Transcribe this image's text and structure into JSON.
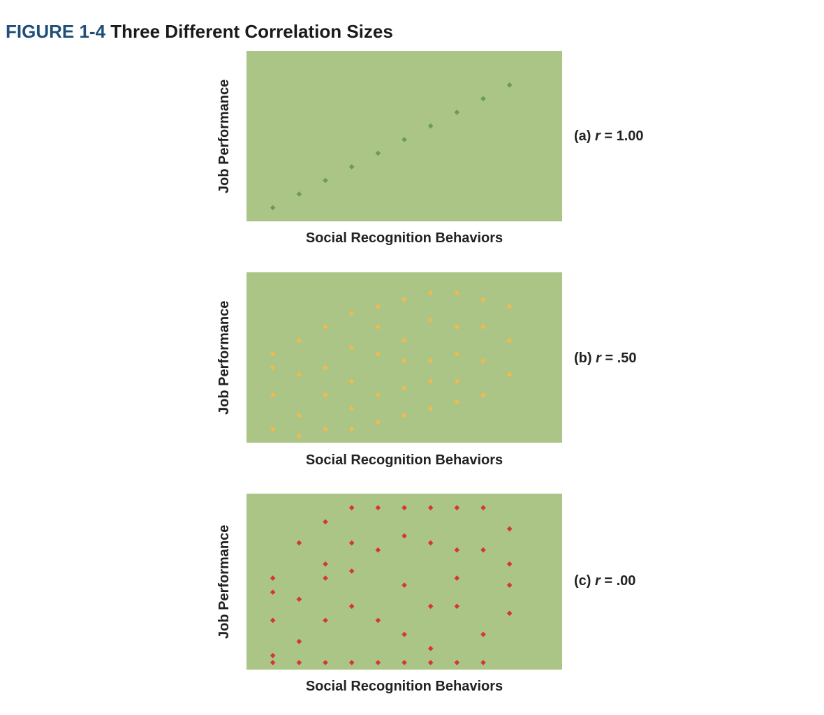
{
  "figure": {
    "number": "FIGURE 1-4",
    "title": "Three Different Correlation Sizes"
  },
  "chart_data": [
    {
      "type": "scatter",
      "panel": "(a)",
      "r_symbol": "r",
      "r_value": "= 1.00",
      "xlabel": "Social Recognition Behaviors",
      "ylabel": "Job Performance",
      "xlim": [
        0,
        12
      ],
      "ylim": [
        0,
        12.5
      ],
      "grid": false,
      "background": "#abc587",
      "point_color": "#6a9a5c",
      "points": [
        [
          1,
          1
        ],
        [
          2,
          2
        ],
        [
          3,
          3
        ],
        [
          4,
          4
        ],
        [
          5,
          5
        ],
        [
          6,
          6
        ],
        [
          7,
          7
        ],
        [
          8,
          8
        ],
        [
          9,
          9
        ],
        [
          10,
          10
        ]
      ]
    },
    {
      "type": "scatter",
      "panel": "(b)",
      "r_symbol": "r",
      "r_value": "= .50",
      "xlabel": "Social Recognition Behaviors",
      "ylabel": "Job Performance",
      "xlim": [
        0,
        12
      ],
      "ylim": [
        0,
        12.5
      ],
      "grid": false,
      "background": "#abc587",
      "point_color": "#f3b94a",
      "points": [
        [
          1,
          1
        ],
        [
          1,
          3.5
        ],
        [
          1,
          5.5
        ],
        [
          1,
          6.5
        ],
        [
          2,
          0.5
        ],
        [
          2,
          2
        ],
        [
          2,
          5
        ],
        [
          2,
          7.5
        ],
        [
          3,
          1
        ],
        [
          3,
          3.5
        ],
        [
          3,
          5.5
        ],
        [
          3,
          8.5
        ],
        [
          4,
          1
        ],
        [
          4,
          2.5
        ],
        [
          4,
          4.5
        ],
        [
          4,
          7
        ],
        [
          4,
          9.5
        ],
        [
          5,
          1.5
        ],
        [
          5,
          3.5
        ],
        [
          5,
          6.5
        ],
        [
          5,
          8.5
        ],
        [
          5,
          10
        ],
        [
          6,
          2
        ],
        [
          6,
          4
        ],
        [
          6,
          6
        ],
        [
          6,
          7.5
        ],
        [
          6,
          10.5
        ],
        [
          7,
          2.5
        ],
        [
          7,
          4.5
        ],
        [
          7,
          6
        ],
        [
          7,
          9
        ],
        [
          7,
          11
        ],
        [
          8,
          3
        ],
        [
          8,
          4.5
        ],
        [
          8,
          6.5
        ],
        [
          8,
          8.5
        ],
        [
          8,
          11
        ],
        [
          9,
          3.5
        ],
        [
          9,
          6
        ],
        [
          9,
          8.5
        ],
        [
          9,
          10.5
        ],
        [
          10,
          5
        ],
        [
          10,
          7.5
        ],
        [
          10,
          10
        ]
      ]
    },
    {
      "type": "scatter",
      "panel": "(c)",
      "r_symbol": "r",
      "r_value": "= .00",
      "xlabel": "Social Recognition Behaviors",
      "ylabel": "Job Performance",
      "xlim": [
        0,
        12
      ],
      "ylim": [
        0,
        12.5
      ],
      "grid": false,
      "background": "#abc587",
      "point_color": "#d6343c",
      "points": [
        [
          1,
          0.5
        ],
        [
          1,
          1
        ],
        [
          1,
          3.5
        ],
        [
          1,
          5.5
        ],
        [
          1,
          6.5
        ],
        [
          2,
          0.5
        ],
        [
          2,
          2
        ],
        [
          2,
          5
        ],
        [
          2,
          9
        ],
        [
          3,
          0.5
        ],
        [
          3,
          3.5
        ],
        [
          3,
          6.5
        ],
        [
          3,
          7.5
        ],
        [
          3,
          10.5
        ],
        [
          4,
          0.5
        ],
        [
          4,
          4.5
        ],
        [
          4,
          7
        ],
        [
          4,
          9
        ],
        [
          4,
          11.5
        ],
        [
          5,
          0.5
        ],
        [
          5,
          3.5
        ],
        [
          5,
          8.5
        ],
        [
          5,
          11.5
        ],
        [
          6,
          0.5
        ],
        [
          6,
          2.5
        ],
        [
          6,
          6
        ],
        [
          6,
          9.5
        ],
        [
          6,
          11.5
        ],
        [
          7,
          0.5
        ],
        [
          7,
          1.5
        ],
        [
          7,
          4.5
        ],
        [
          7,
          9
        ],
        [
          7,
          11.5
        ],
        [
          8,
          0.5
        ],
        [
          8,
          4.5
        ],
        [
          8,
          6.5
        ],
        [
          8,
          8.5
        ],
        [
          8,
          11.5
        ],
        [
          9,
          0.5
        ],
        [
          9,
          2.5
        ],
        [
          9,
          8.5
        ],
        [
          9,
          11.5
        ],
        [
          10,
          4
        ],
        [
          10,
          6
        ],
        [
          10,
          7.5
        ],
        [
          10,
          10
        ]
      ]
    }
  ]
}
